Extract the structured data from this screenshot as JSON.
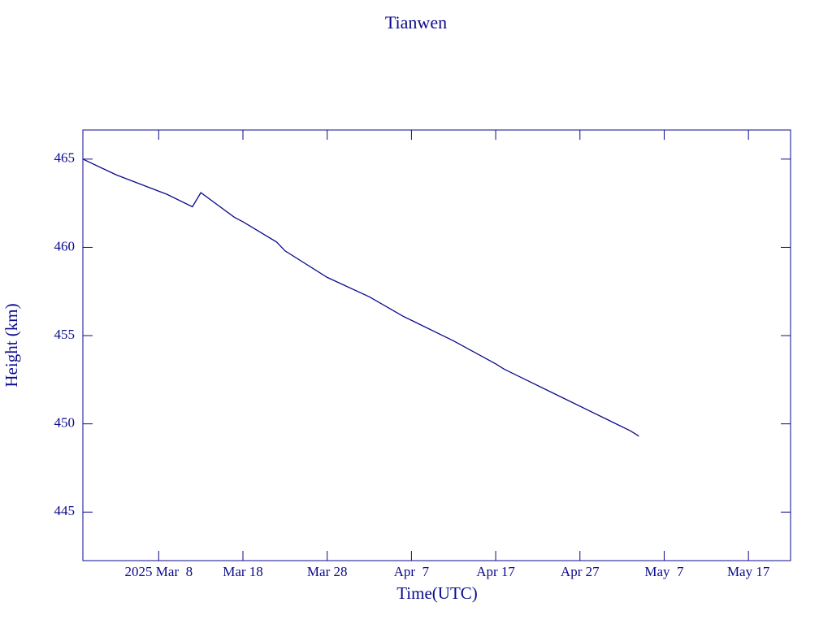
{
  "chart_data": {
    "type": "line",
    "title": "Tianwen",
    "x_label": "Time(UTC)",
    "y_label": "Height (km)",
    "color": "#0a0a8c",
    "x": [
      "2025-02-27",
      "2025-03-03",
      "2025-03-09",
      "2025-03-12",
      "2025-03-13",
      "2025-03-17",
      "2025-03-18",
      "2025-03-22",
      "2025-03-23",
      "2025-03-28",
      "2025-04-02",
      "2025-04-06",
      "2025-04-12",
      "2025-04-17",
      "2025-04-18",
      "2025-04-24",
      "2025-04-30",
      "2025-05-03",
      "2025-05-04"
    ],
    "values": [
      465.0,
      464.1,
      463.0,
      462.3,
      463.1,
      461.7,
      461.45,
      460.3,
      459.8,
      458.3,
      457.2,
      456.1,
      454.7,
      453.4,
      453.1,
      451.7,
      450.3,
      449.6,
      449.3
    ],
    "xlim": [
      "2025-02-27",
      "2025-05-22"
    ],
    "xticks": [
      {
        "value": "2025-03-08",
        "label": "2025 Mar  8"
      },
      {
        "value": "2025-03-18",
        "label": "Mar 18"
      },
      {
        "value": "2025-03-28",
        "label": "Mar 28"
      },
      {
        "value": "2025-04-07",
        "label": "Apr  7"
      },
      {
        "value": "2025-04-17",
        "label": "Apr 17"
      },
      {
        "value": "2025-04-27",
        "label": "Apr 27"
      },
      {
        "value": "2025-05-07",
        "label": "May  7"
      },
      {
        "value": "2025-05-17",
        "label": "May 17"
      }
    ],
    "ylim": [
      442.25,
      466.65
    ],
    "yticks": [
      445,
      450,
      455,
      460,
      465
    ]
  }
}
